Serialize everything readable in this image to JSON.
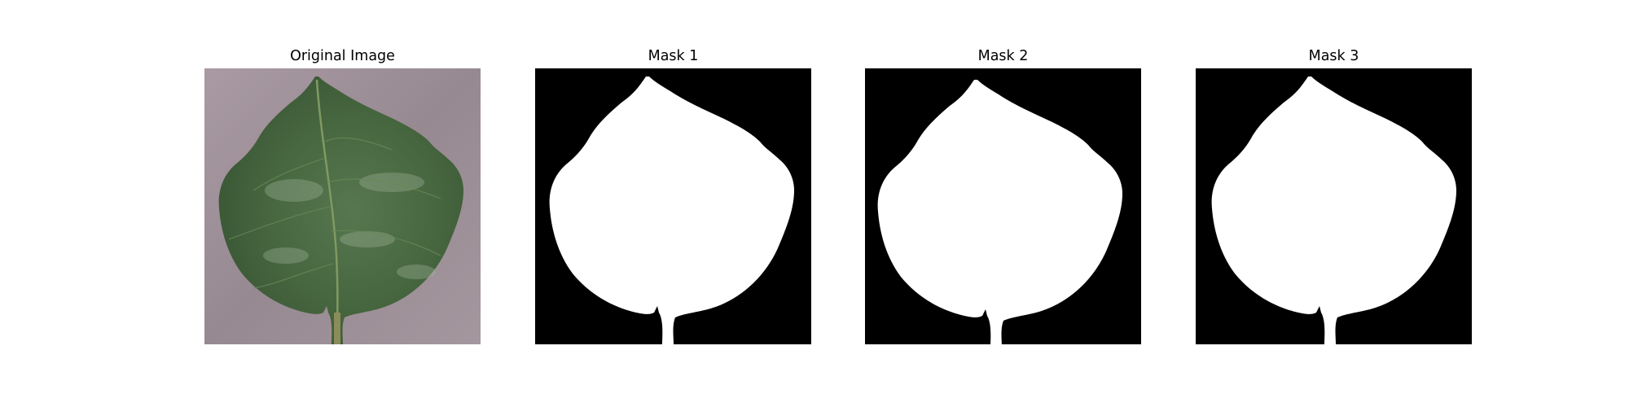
{
  "panels": [
    {
      "title": "Original Image"
    },
    {
      "title": "Mask 1"
    },
    {
      "title": "Mask 2"
    },
    {
      "title": "Mask 3"
    }
  ],
  "colors": {
    "background": "#ffffff",
    "mask_foreground": "#ffffff",
    "mask_background": "#000000",
    "leaf_green": "#4b6e46",
    "surface_mauve": "#9a8c95"
  },
  "icons": [
    "leaf-photo",
    "leaf-mask"
  ]
}
